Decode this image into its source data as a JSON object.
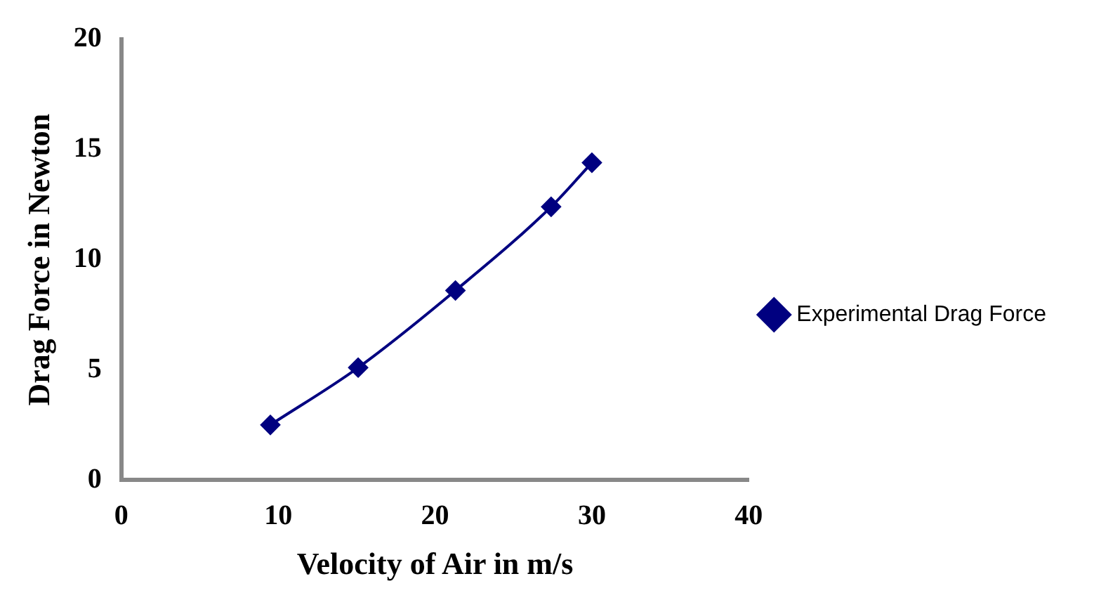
{
  "chart_data": {
    "type": "line",
    "xlabel": "Velocity of Air in m/s",
    "ylabel": "Drag Force in Newton",
    "series": [
      {
        "name": "Experimental Drag Force",
        "color": "#000080",
        "x": [
          9.5,
          15.1,
          21.3,
          27.4,
          30
        ],
        "values": [
          2.5,
          5.1,
          8.6,
          12.4,
          14.4
        ]
      }
    ],
    "xlim": [
      0,
      40
    ],
    "xticks": [
      0,
      10,
      20,
      30,
      40
    ],
    "ylim": [
      0,
      20
    ],
    "yticks": [
      0,
      5,
      10,
      15,
      20
    ],
    "grid": false,
    "legend": "right",
    "marker": "diamond",
    "line_style": "solid"
  }
}
